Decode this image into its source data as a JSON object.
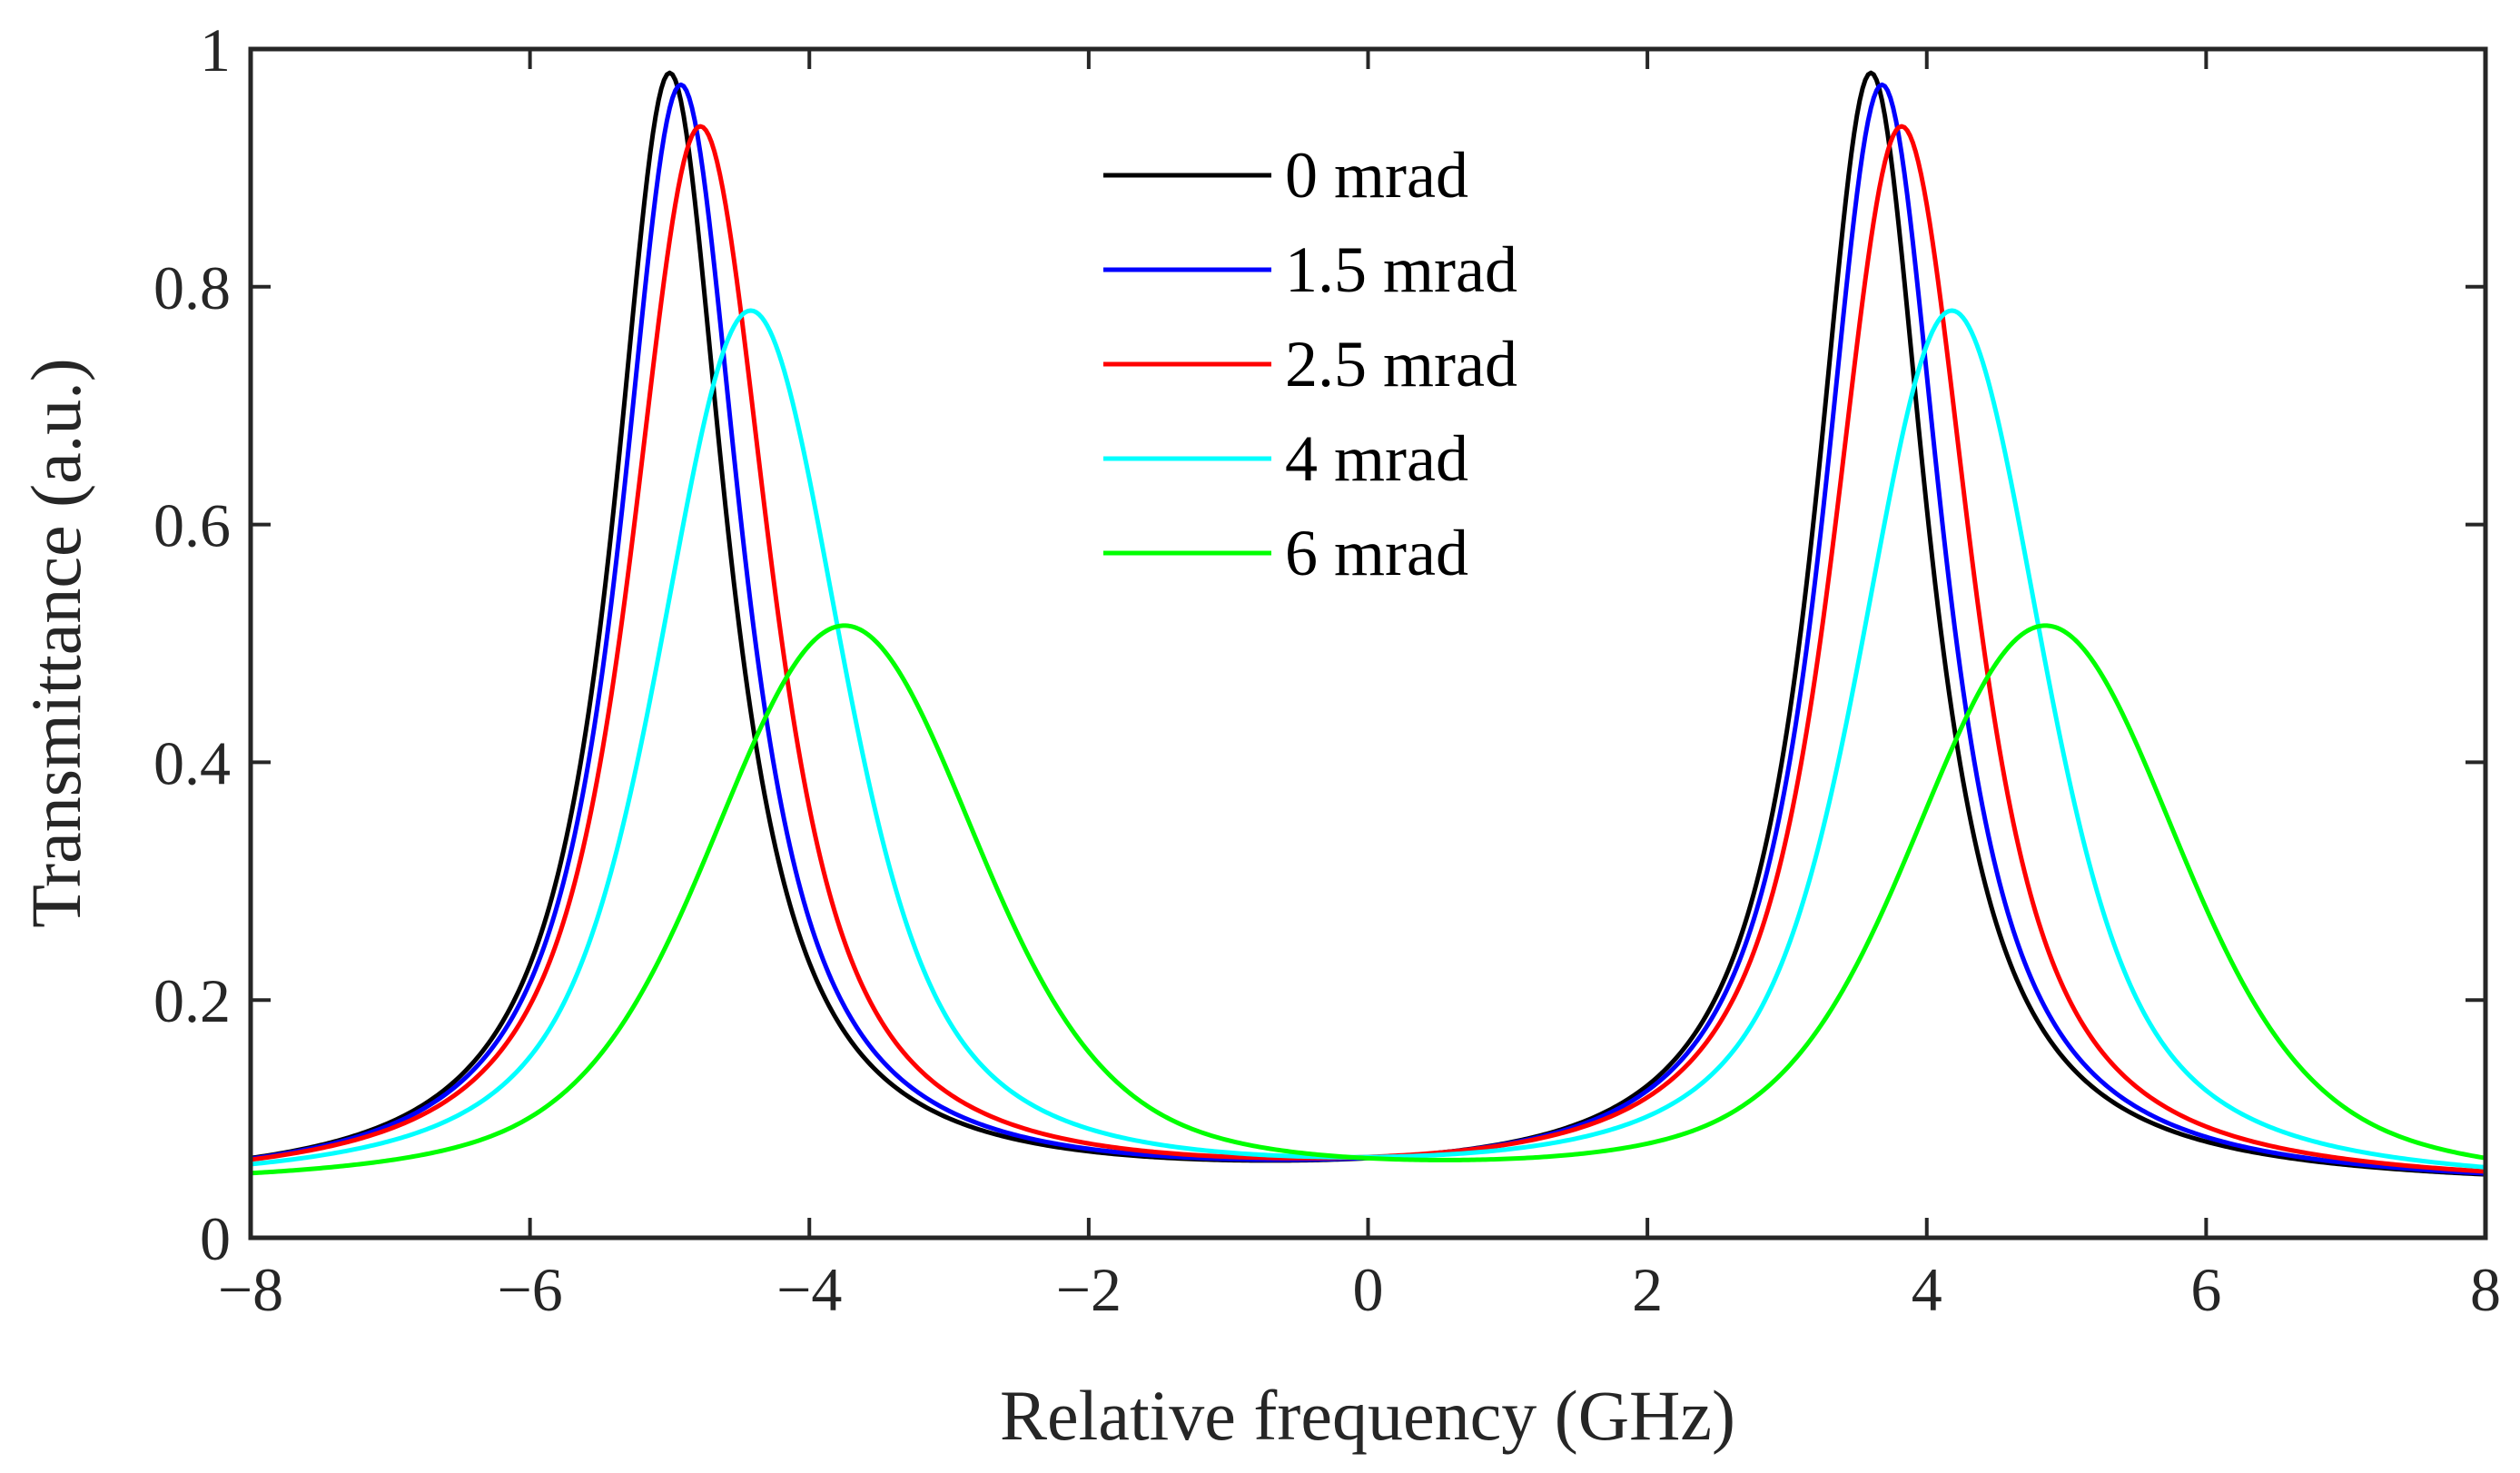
{
  "chart_data": {
    "type": "line",
    "title": "",
    "xlabel": "Relative frequency (GHz)",
    "ylabel": "Transmittance (a.u.)",
    "xlim": [
      -8,
      8
    ],
    "ylim": [
      0,
      1
    ],
    "xticks": [
      -8,
      -6,
      -4,
      -2,
      0,
      2,
      4,
      6,
      8
    ],
    "xtick_labels": [
      "−8",
      "−6",
      "−4",
      "−2",
      "0",
      "2",
      "4",
      "6",
      "8"
    ],
    "yticks": [
      0,
      0.2,
      0.4,
      0.6,
      0.8,
      1
    ],
    "ytick_labels": [
      "0",
      "0.2",
      "0.4",
      "0.6",
      "0.8",
      "1"
    ],
    "grid": false,
    "legend_position": "top-center",
    "series": [
      {
        "name": "0 mrad",
        "color": "#000000",
        "peaks": [
          -5.0,
          3.6
        ],
        "peak_value": 0.98,
        "baseline": 0.04,
        "lorentz_hwhm": 0.5,
        "gauss_sigma": 0.0
      },
      {
        "name": "1.5 mrad",
        "color": "#0000ff",
        "peaks": [
          -4.92,
          3.68
        ],
        "peak_value": 0.97,
        "baseline": 0.04,
        "lorentz_hwhm": 0.5,
        "gauss_sigma": 0.1
      },
      {
        "name": "2.5 mrad",
        "color": "#ff0000",
        "peaks": [
          -4.78,
          3.82
        ],
        "peak_value": 0.935,
        "baseline": 0.04,
        "lorentz_hwhm": 0.5,
        "gauss_sigma": 0.2
      },
      {
        "name": "4 mrad",
        "color": "#00ffff",
        "peaks": [
          -4.42,
          4.18
        ],
        "peak_value": 0.78,
        "baseline": 0.04,
        "lorentz_hwhm": 0.5,
        "gauss_sigma": 0.4
      },
      {
        "name": "6 mrad",
        "color": "#00ff00",
        "peaks": [
          -3.75,
          4.85
        ],
        "peak_value": 0.515,
        "baseline": 0.04,
        "lorentz_hwhm": 0.5,
        "gauss_sigma": 0.72
      }
    ]
  }
}
